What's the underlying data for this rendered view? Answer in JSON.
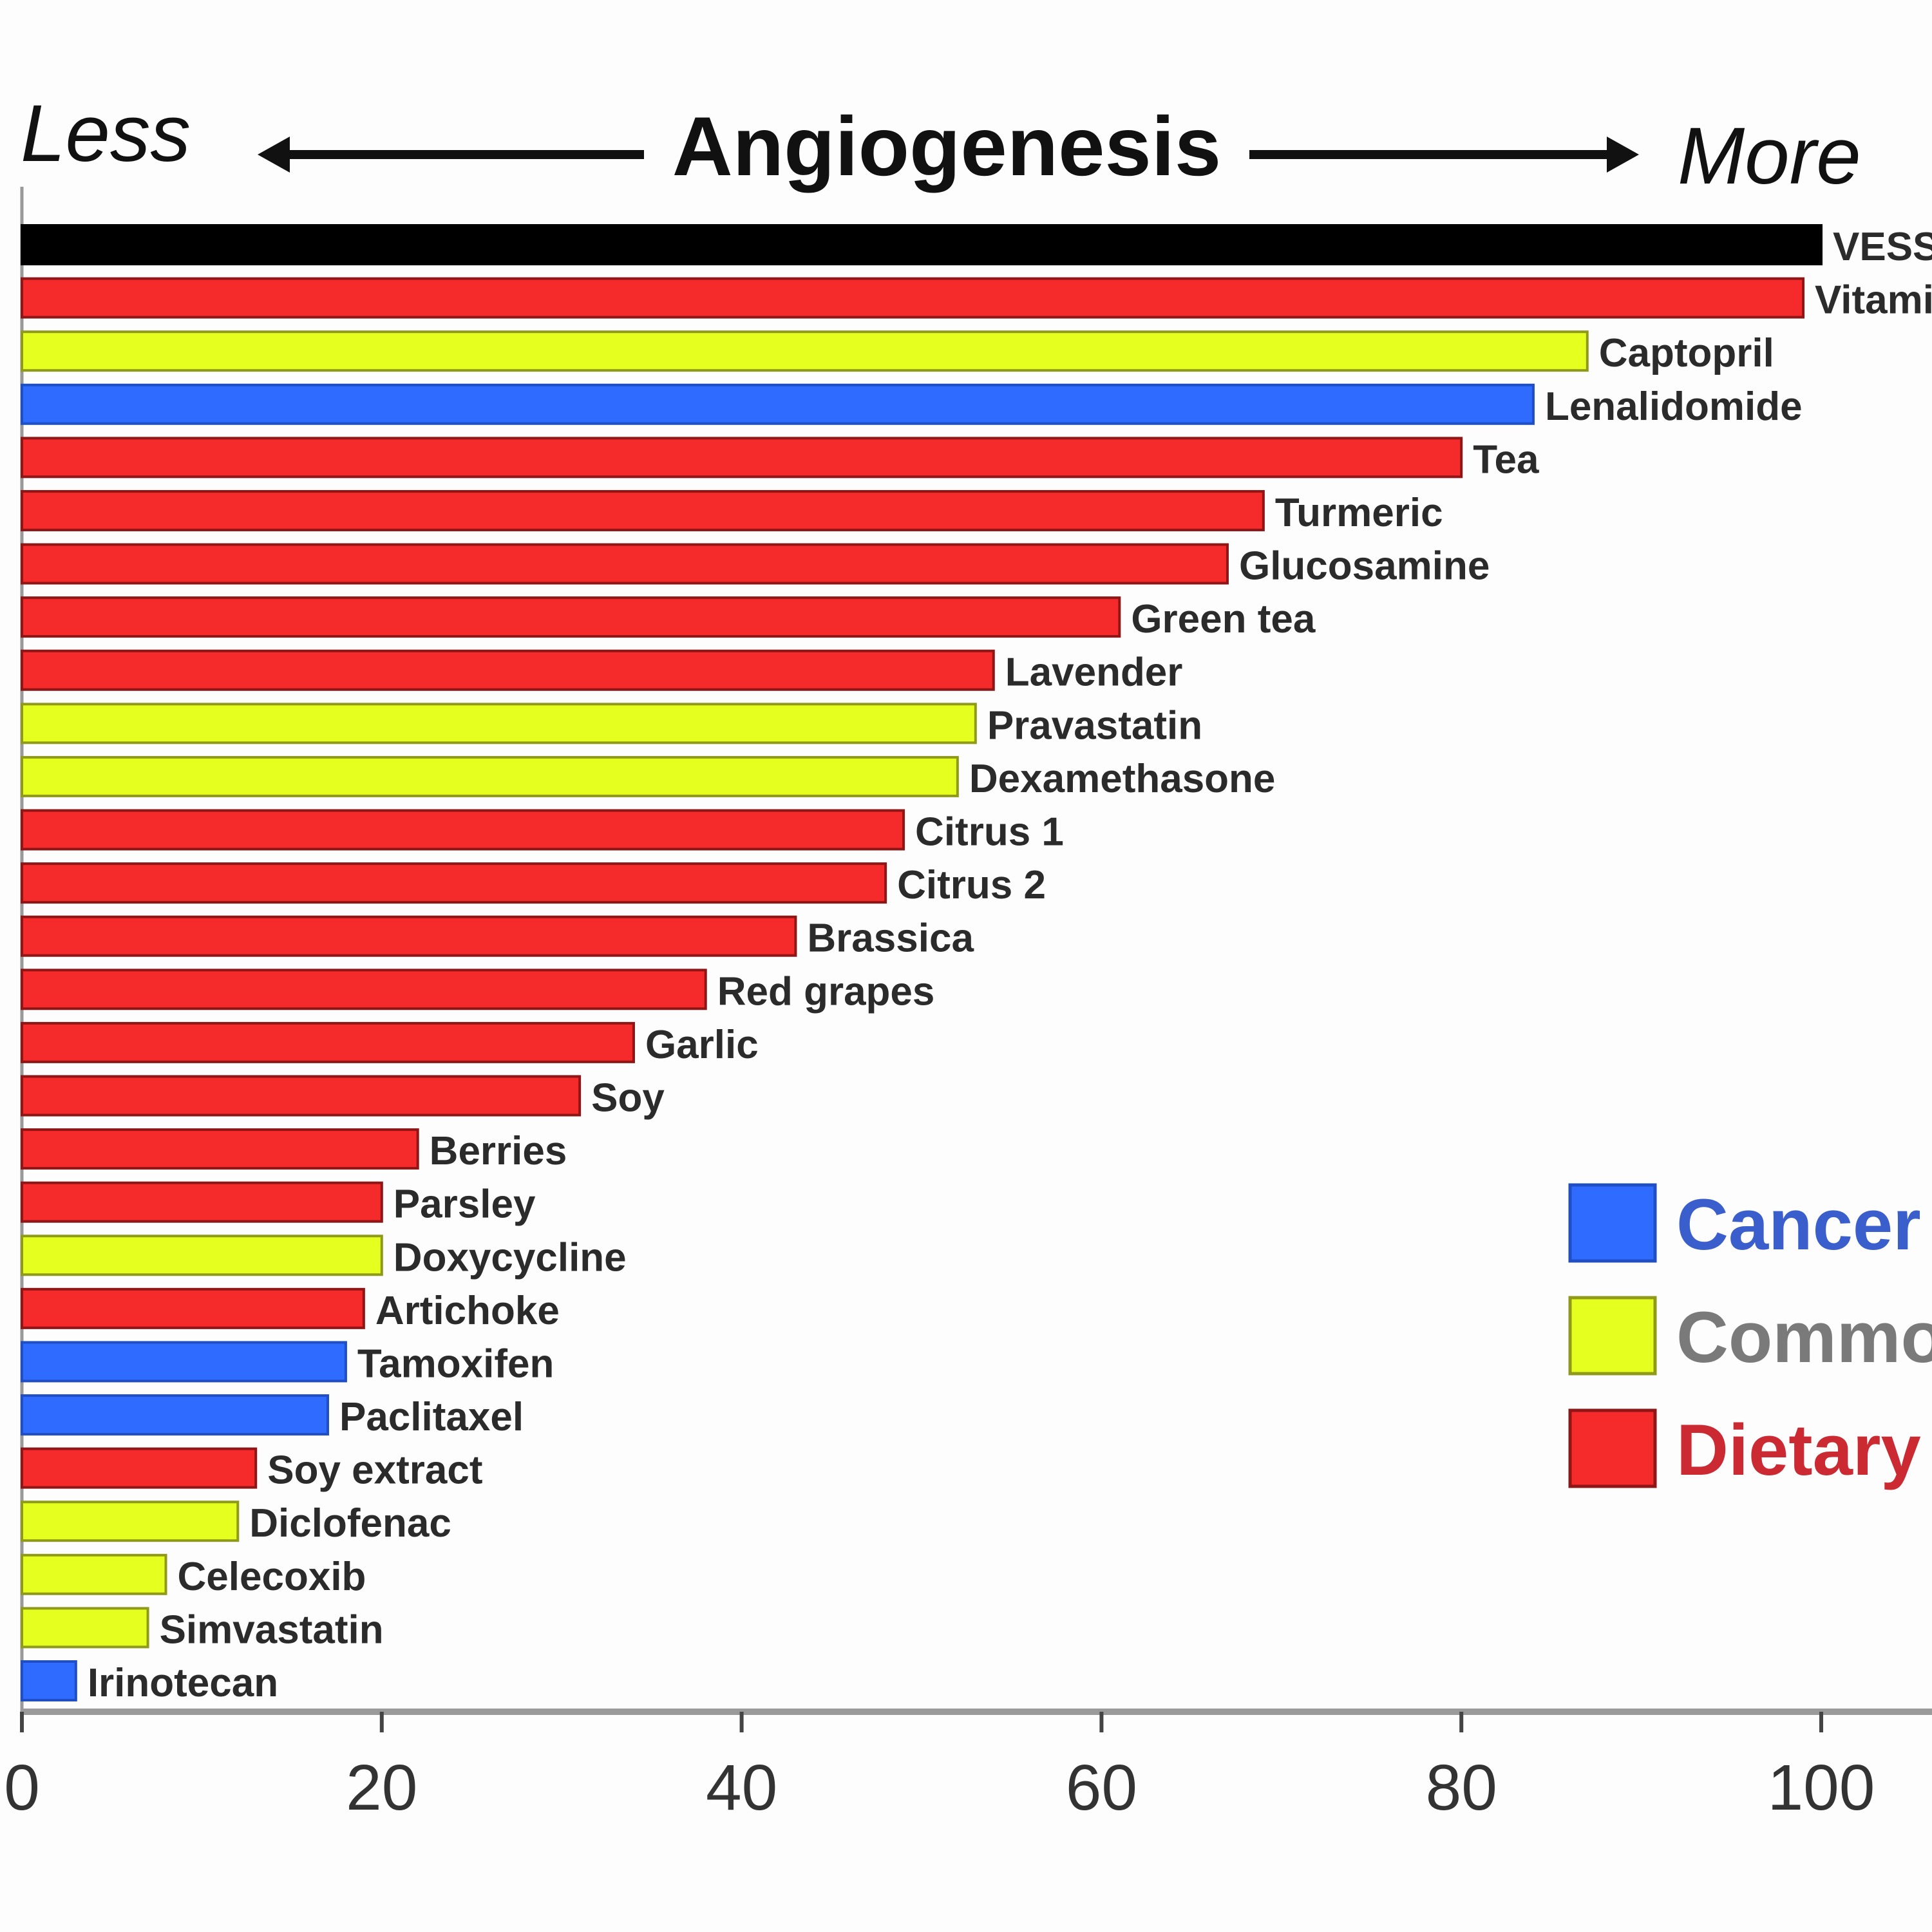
{
  "chart_data": {
    "type": "bar",
    "orientation": "horizontal",
    "title": "Angiogenesis",
    "left_annotation": "Less",
    "right_annotation": "More",
    "xlabel": "",
    "ylabel": "",
    "xlim": [
      0,
      100
    ],
    "xticks": [
      0,
      20,
      40,
      60,
      80,
      100
    ],
    "grid": false,
    "legend_position": "right",
    "legend": [
      {
        "name": "Cancer",
        "color": "#2f6bff",
        "text_color": "#3a5fcd"
      },
      {
        "name": "Commo",
        "color": "#e5ff1f",
        "text_color": "#7a7a7a"
      },
      {
        "name": "Dietary",
        "color": "#f52a2a",
        "text_color": "#cc2a33"
      }
    ],
    "series_colors": {
      "control": "#000000",
      "cancer": "#2f6bff",
      "common": "#e5ff1f",
      "dietary": "#f52a2a"
    },
    "bars": [
      {
        "label": "VESS",
        "value": 100,
        "group": "control"
      },
      {
        "label": "Vitami",
        "value": 99,
        "group": "dietary"
      },
      {
        "label": "Captopril",
        "value": 87,
        "group": "common"
      },
      {
        "label": "Lenalidomide",
        "value": 84,
        "group": "cancer"
      },
      {
        "label": "Tea",
        "value": 80,
        "group": "dietary"
      },
      {
        "label": "Turmeric",
        "value": 69,
        "group": "dietary"
      },
      {
        "label": "Glucosamine",
        "value": 67,
        "group": "dietary"
      },
      {
        "label": "Green tea",
        "value": 61,
        "group": "dietary"
      },
      {
        "label": "Lavender",
        "value": 54,
        "group": "dietary"
      },
      {
        "label": "Pravastatin",
        "value": 53,
        "group": "common"
      },
      {
        "label": "Dexamethasone",
        "value": 52,
        "group": "common"
      },
      {
        "label": "Citrus 1",
        "value": 49,
        "group": "dietary"
      },
      {
        "label": "Citrus 2",
        "value": 48,
        "group": "dietary"
      },
      {
        "label": "Brassica",
        "value": 43,
        "group": "dietary"
      },
      {
        "label": "Red grapes",
        "value": 38,
        "group": "dietary"
      },
      {
        "label": "Garlic",
        "value": 34,
        "group": "dietary"
      },
      {
        "label": "Soy",
        "value": 31,
        "group": "dietary"
      },
      {
        "label": "Berries",
        "value": 22,
        "group": "dietary"
      },
      {
        "label": "Parsley",
        "value": 20,
        "group": "dietary"
      },
      {
        "label": "Doxycycline",
        "value": 20,
        "group": "common"
      },
      {
        "label": "Artichoke",
        "value": 19,
        "group": "dietary"
      },
      {
        "label": "Tamoxifen",
        "value": 18,
        "group": "cancer"
      },
      {
        "label": "Paclitaxel",
        "value": 17,
        "group": "cancer"
      },
      {
        "label": "Soy extract",
        "value": 13,
        "group": "dietary"
      },
      {
        "label": "Diclofenac",
        "value": 12,
        "group": "common"
      },
      {
        "label": "Celecoxib",
        "value": 8,
        "group": "common"
      },
      {
        "label": "Simvastatin",
        "value": 7,
        "group": "common"
      },
      {
        "label": "Irinotecan",
        "value": 3,
        "group": "cancer"
      }
    ]
  }
}
